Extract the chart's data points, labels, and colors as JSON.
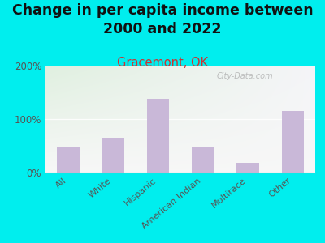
{
  "title": "Change in per capita income between\n2000 and 2022",
  "subtitle": "Gracemont, OK",
  "categories": [
    "All",
    "White",
    "Hispanic",
    "American Indian",
    "Multirace",
    "Other"
  ],
  "values": [
    47,
    65,
    138,
    47,
    18,
    115
  ],
  "bar_color": "#c9b8d8",
  "title_fontsize": 12.5,
  "subtitle_fontsize": 10.5,
  "subtitle_color": "#cc3333",
  "title_color": "#111111",
  "bg_outer": "#00eeee",
  "ylim": [
    0,
    200
  ],
  "yticks": [
    0,
    100,
    200
  ],
  "ytick_labels": [
    "0%",
    "100%",
    "200%"
  ],
  "watermark": "City-Data.com",
  "xlabel_rotation": 40,
  "tick_color": "#555555"
}
